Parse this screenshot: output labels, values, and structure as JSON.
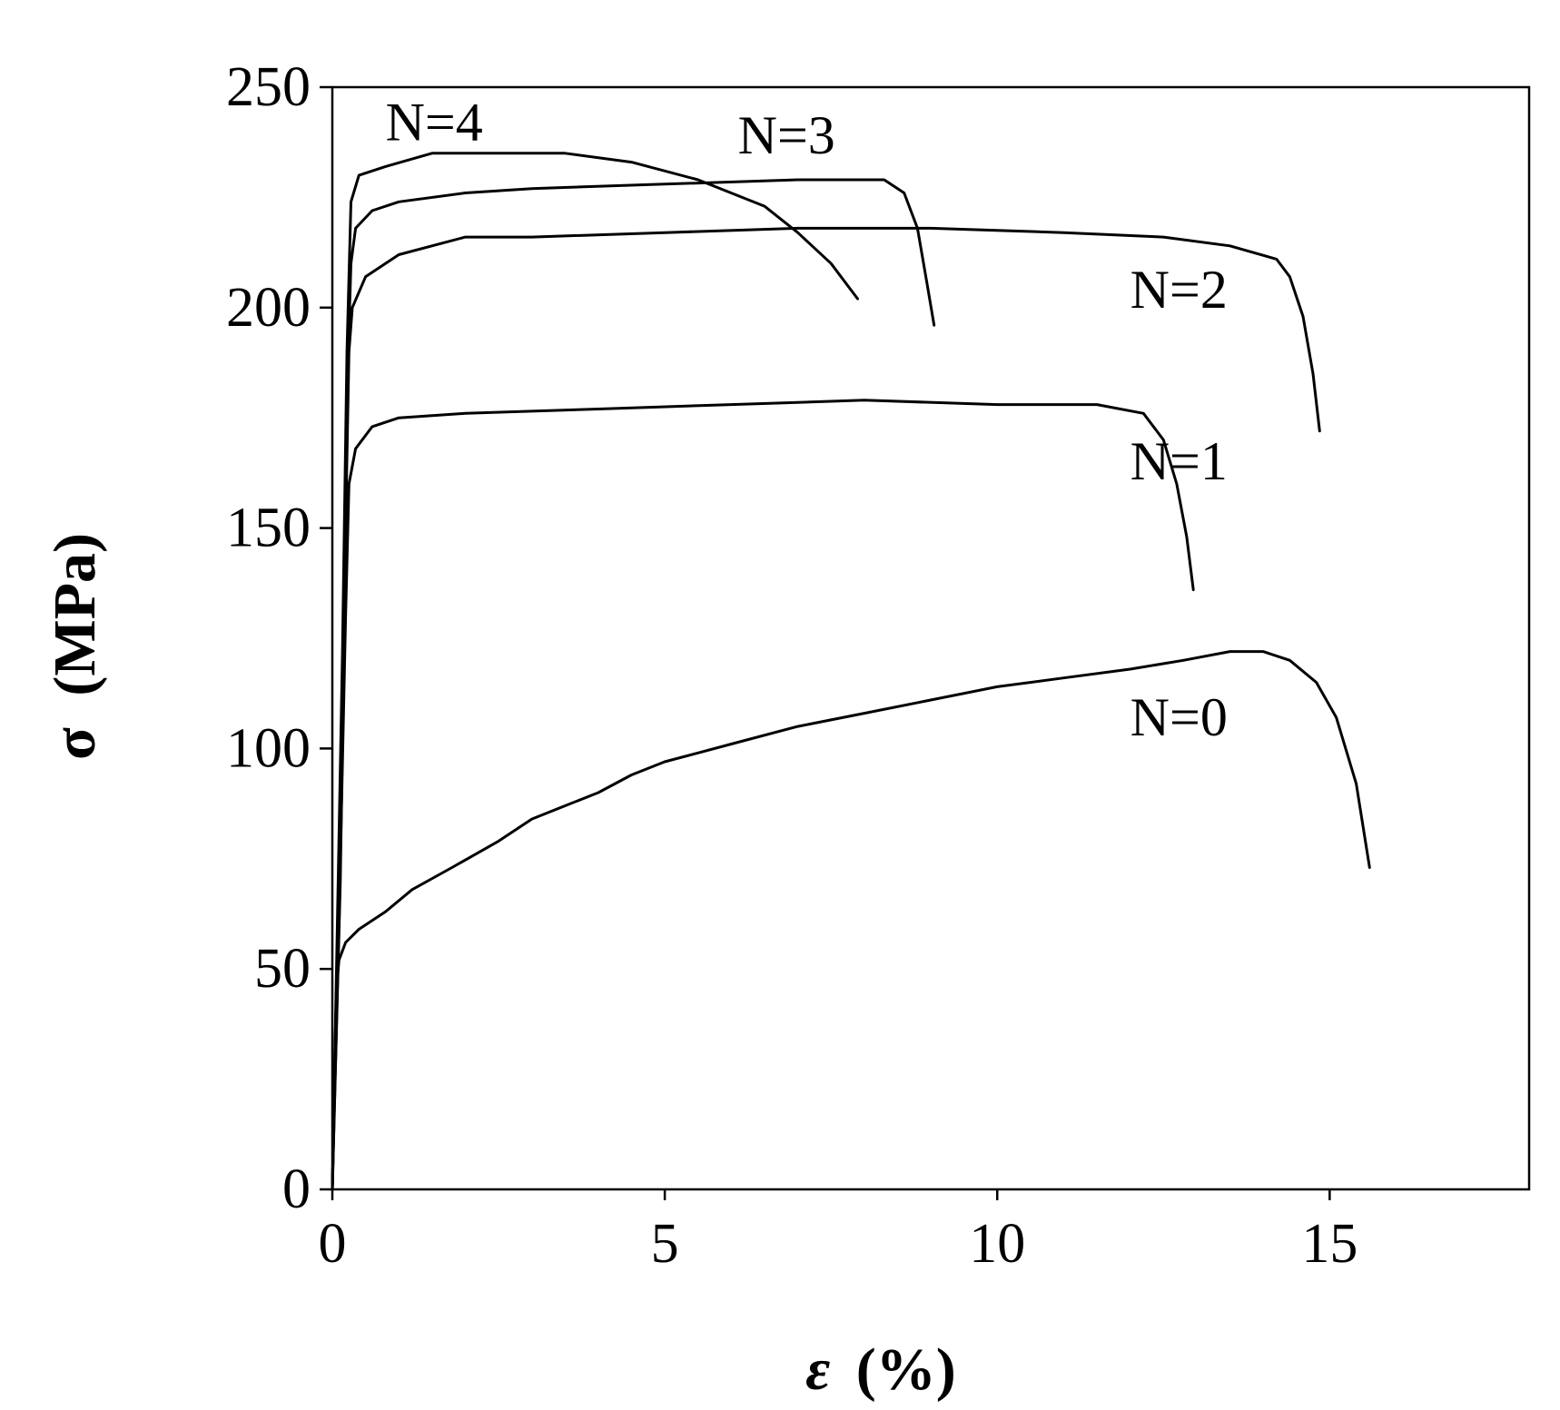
{
  "chart_data": {
    "type": "line",
    "xlabel_symbol": "ε",
    "xlabel_unit": "(%)",
    "ylabel_symbol": "σ",
    "ylabel_unit": "(MPa)",
    "xlim": [
      0,
      18
    ],
    "ylim": [
      0,
      250
    ],
    "xticks": [
      0,
      5,
      10,
      15
    ],
    "yticks": [
      0,
      50,
      100,
      150,
      200,
      250
    ],
    "grid": false,
    "series": [
      {
        "name": "N=0",
        "label_at": [
          12.0,
          103
        ],
        "points": [
          [
            0.0,
            0
          ],
          [
            0.03,
            25
          ],
          [
            0.06,
            45
          ],
          [
            0.1,
            52
          ],
          [
            0.2,
            56
          ],
          [
            0.4,
            59
          ],
          [
            0.8,
            63
          ],
          [
            1.2,
            68
          ],
          [
            1.8,
            73
          ],
          [
            2.5,
            79
          ],
          [
            3.0,
            84
          ],
          [
            3.5,
            87
          ],
          [
            4.0,
            90
          ],
          [
            4.5,
            94
          ],
          [
            5.0,
            97
          ],
          [
            5.5,
            99
          ],
          [
            6.0,
            101
          ],
          [
            7.0,
            105
          ],
          [
            8.0,
            108
          ],
          [
            9.0,
            111
          ],
          [
            10.0,
            114
          ],
          [
            11.0,
            116
          ],
          [
            12.0,
            118
          ],
          [
            12.8,
            120
          ],
          [
            13.5,
            122
          ],
          [
            14.0,
            122
          ],
          [
            14.4,
            120
          ],
          [
            14.8,
            115
          ],
          [
            15.1,
            107
          ],
          [
            15.4,
            92
          ],
          [
            15.6,
            73
          ]
        ]
      },
      {
        "name": "N=1",
        "label_at": [
          12.0,
          161
        ],
        "points": [
          [
            0.0,
            0
          ],
          [
            0.1,
            60
          ],
          [
            0.2,
            130
          ],
          [
            0.25,
            160
          ],
          [
            0.35,
            168
          ],
          [
            0.6,
            173
          ],
          [
            1.0,
            175
          ],
          [
            2.0,
            176
          ],
          [
            4.0,
            177
          ],
          [
            6.0,
            178
          ],
          [
            8.0,
            179
          ],
          [
            10.0,
            178
          ],
          [
            11.5,
            178
          ],
          [
            12.2,
            176
          ],
          [
            12.5,
            170
          ],
          [
            12.7,
            160
          ],
          [
            12.85,
            148
          ],
          [
            12.95,
            136
          ]
        ]
      },
      {
        "name": "N=2",
        "label_at": [
          12.0,
          200
        ],
        "points": [
          [
            0.0,
            0
          ],
          [
            0.12,
            70
          ],
          [
            0.2,
            150
          ],
          [
            0.25,
            190
          ],
          [
            0.3,
            200
          ],
          [
            0.5,
            207
          ],
          [
            1.0,
            212
          ],
          [
            2.0,
            216
          ],
          [
            3.0,
            216
          ],
          [
            5.0,
            217
          ],
          [
            7.0,
            218
          ],
          [
            9.0,
            218
          ],
          [
            11.0,
            217
          ],
          [
            12.5,
            216
          ],
          [
            13.5,
            214
          ],
          [
            14.2,
            211
          ],
          [
            14.4,
            207
          ],
          [
            14.6,
            198
          ],
          [
            14.75,
            185
          ],
          [
            14.85,
            172
          ]
        ]
      },
      {
        "name": "N=3",
        "label_at": [
          6.1,
          235
        ],
        "points": [
          [
            0.0,
            0
          ],
          [
            0.15,
            110
          ],
          [
            0.22,
            180
          ],
          [
            0.28,
            210
          ],
          [
            0.35,
            218
          ],
          [
            0.6,
            222
          ],
          [
            1.0,
            224
          ],
          [
            2.0,
            226
          ],
          [
            3.0,
            227
          ],
          [
            5.0,
            228
          ],
          [
            7.0,
            229
          ],
          [
            8.3,
            229
          ],
          [
            8.6,
            226
          ],
          [
            8.8,
            218
          ],
          [
            8.95,
            205
          ],
          [
            9.05,
            196
          ]
        ]
      },
      {
        "name": "N=4",
        "label_at": [
          0.8,
          238
        ],
        "points": [
          [
            0.0,
            0
          ],
          [
            0.15,
            120
          ],
          [
            0.22,
            190
          ],
          [
            0.28,
            224
          ],
          [
            0.4,
            230
          ],
          [
            0.8,
            232
          ],
          [
            1.5,
            235
          ],
          [
            2.5,
            235
          ],
          [
            3.5,
            235
          ],
          [
            4.5,
            233
          ],
          [
            5.5,
            229
          ],
          [
            6.5,
            223
          ],
          [
            7.0,
            217
          ],
          [
            7.5,
            210
          ],
          [
            7.9,
            202
          ]
        ]
      }
    ]
  }
}
